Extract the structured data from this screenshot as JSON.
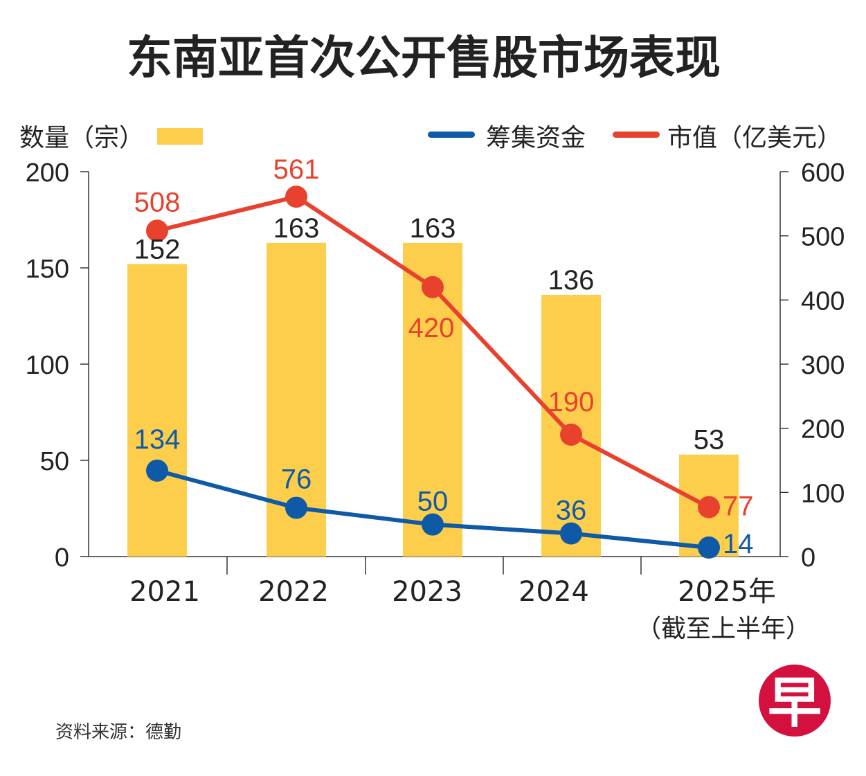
{
  "chart_data": {
    "type": "bar+line",
    "title": "东南亚首次公开售股市场表现",
    "categories": [
      "2021",
      "2022",
      "2023",
      "2024",
      "2025年"
    ],
    "category_note": "（截至上半年）",
    "left_axis": {
      "label": "数量（宗）",
      "ylim": [
        0,
        200
      ],
      "ticks": [
        0,
        50,
        100,
        150,
        200
      ]
    },
    "right_axis": {
      "ylim": [
        0,
        600
      ],
      "ticks": [
        0,
        100,
        200,
        300,
        400,
        500,
        600
      ]
    },
    "series": [
      {
        "name": "数量（宗）",
        "kind": "bar",
        "axis": "left",
        "color": "#fdcd4c",
        "values": [
          152,
          163,
          163,
          136,
          53
        ]
      },
      {
        "name": "筹集资金",
        "kind": "line",
        "axis": "right",
        "color": "#0e5aa7",
        "values": [
          134,
          76,
          50,
          36,
          14
        ]
      },
      {
        "name": "市值（亿美元）",
        "kind": "line",
        "axis": "right",
        "color": "#e8412e",
        "values": [
          508,
          561,
          420,
          190,
          77
        ]
      }
    ],
    "legend": "top",
    "grid": false,
    "source": "资料来源：德勤"
  },
  "logo": {
    "text": "早",
    "color": "#d4103f"
  }
}
